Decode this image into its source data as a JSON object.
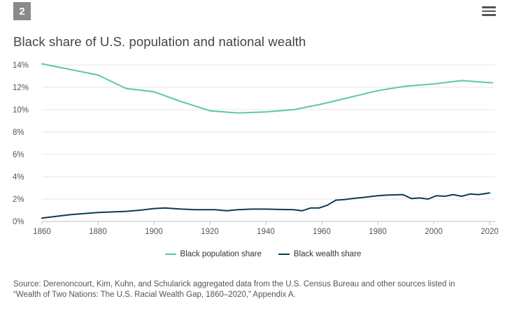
{
  "badge": {
    "number": "2"
  },
  "title": "Black share of U.S. population and national wealth",
  "menu": {
    "icon": "hamburger-menu-icon"
  },
  "chart_data": {
    "type": "line",
    "title": "Black share of U.S. population and national wealth",
    "xlabel": "",
    "ylabel": "",
    "xlim": [
      1860,
      2022
    ],
    "ylim": [
      0,
      14
    ],
    "x_ticks": [
      "1860",
      "1880",
      "1900",
      "1920",
      "1940",
      "1960",
      "1980",
      "2000",
      "2020"
    ],
    "y_ticks": [
      "0%",
      "2%",
      "4%",
      "6%",
      "8%",
      "10%",
      "12%",
      "14%"
    ],
    "grid": true,
    "legend_position": "bottom",
    "series": [
      {
        "name": "Black population share",
        "color": "#5cc6ad",
        "points": [
          [
            1860,
            14.1
          ],
          [
            1870,
            13.6
          ],
          [
            1880,
            13.1
          ],
          [
            1890,
            11.9
          ],
          [
            1900,
            11.6
          ],
          [
            1910,
            10.7
          ],
          [
            1920,
            9.9
          ],
          [
            1930,
            9.7
          ],
          [
            1940,
            9.8
          ],
          [
            1950,
            10.0
          ],
          [
            1960,
            10.5
          ],
          [
            1970,
            11.1
          ],
          [
            1980,
            11.7
          ],
          [
            1990,
            12.1
          ],
          [
            2000,
            12.3
          ],
          [
            2010,
            12.6
          ],
          [
            2021,
            12.4
          ]
        ]
      },
      {
        "name": "Black wealth share",
        "color": "#0d3b4f",
        "points": [
          [
            1860,
            0.3
          ],
          [
            1870,
            0.6
          ],
          [
            1880,
            0.8
          ],
          [
            1890,
            0.9
          ],
          [
            1895,
            1.0
          ],
          [
            1900,
            1.15
          ],
          [
            1904,
            1.2
          ],
          [
            1910,
            1.1
          ],
          [
            1915,
            1.05
          ],
          [
            1922,
            1.05
          ],
          [
            1926,
            0.95
          ],
          [
            1930,
            1.05
          ],
          [
            1935,
            1.1
          ],
          [
            1940,
            1.1
          ],
          [
            1945,
            1.07
          ],
          [
            1950,
            1.05
          ],
          [
            1953,
            0.95
          ],
          [
            1956,
            1.2
          ],
          [
            1959,
            1.2
          ],
          [
            1962,
            1.45
          ],
          [
            1965,
            1.9
          ],
          [
            1968,
            1.95
          ],
          [
            1971,
            2.05
          ],
          [
            1975,
            2.15
          ],
          [
            1980,
            2.3
          ],
          [
            1983,
            2.35
          ],
          [
            1989,
            2.4
          ],
          [
            1992,
            2.05
          ],
          [
            1995,
            2.1
          ],
          [
            1998,
            2.0
          ],
          [
            2001,
            2.3
          ],
          [
            2004,
            2.25
          ],
          [
            2007,
            2.4
          ],
          [
            2010,
            2.25
          ],
          [
            2013,
            2.45
          ],
          [
            2016,
            2.4
          ],
          [
            2020,
            2.55
          ]
        ]
      }
    ]
  },
  "legend": {
    "items": [
      {
        "label": "Black population share",
        "color": "#5cc6ad"
      },
      {
        "label": "Black wealth share",
        "color": "#0d3b4f"
      }
    ]
  },
  "source": {
    "line1": "Source: Derenoncourt, Kim, Kuhn, and Schularick aggregated data from the U.S. Census Bureau and other sources listed in",
    "line2": "“Wealth of Two Nations: The U.S. Racial Wealth Gap, 1860–2020,” Appendix A."
  }
}
